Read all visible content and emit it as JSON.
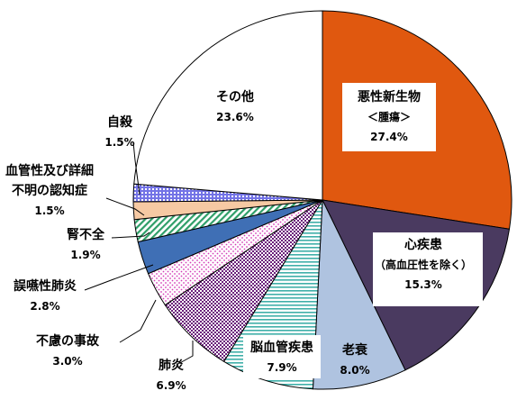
{
  "chart_data": {
    "type": "pie",
    "title": "",
    "start": "12 o'clock",
    "direction": "clockwise",
    "slices": [
      {
        "label": "悪性新生物",
        "sublabel": "＜腫瘍＞",
        "value": 27.4,
        "value_text": "27.4%",
        "fill": "#E0580F",
        "pattern": "solid",
        "label_box": true
      },
      {
        "label": "心疾患",
        "sublabel": "（高血圧性を除く）",
        "value": 15.3,
        "value_text": "15.3%",
        "fill": "#4A3A60",
        "pattern": "solid",
        "label_box": true
      },
      {
        "label": "老衰",
        "sublabel": "",
        "value": 8.0,
        "value_text": "8.0%",
        "fill": "#AFC3E0",
        "pattern": "solid",
        "label_box": false
      },
      {
        "label": "脳血管疾患",
        "sublabel": "",
        "value": 7.9,
        "value_text": "7.9%",
        "fill": "#3FAFA9",
        "pattern": "hlines-teal",
        "label_box": true
      },
      {
        "label": "肺炎",
        "sublabel": "",
        "value": 6.9,
        "value_text": "6.9%",
        "fill": "#6A1F7A",
        "pattern": "checker-purple",
        "label_box": false
      },
      {
        "label": "不慮の事故",
        "sublabel": "",
        "value": 3.0,
        "value_text": "3.0%",
        "fill": "#D33DB8",
        "pattern": "dots-magenta",
        "label_box": false
      },
      {
        "label": "誤嚥性肺炎",
        "sublabel": "",
        "value": 2.8,
        "value_text": "2.8%",
        "fill": "#3F6FB5",
        "pattern": "solid",
        "label_box": false
      },
      {
        "label": "腎不全",
        "sublabel": "",
        "value": 1.9,
        "value_text": "1.9%",
        "fill": "#2E9E68",
        "pattern": "diag-green",
        "label_box": false
      },
      {
        "label": "血管性及び詳細\n不明の認知症",
        "sublabel": "",
        "value": 1.5,
        "value_text": "1.5%",
        "fill": "#F6C9A3",
        "pattern": "solid",
        "label_box": false
      },
      {
        "label": "自殺",
        "sublabel": "",
        "value": 1.5,
        "value_text": "1.5%",
        "fill": "#7373E6",
        "pattern": "grid-blue",
        "label_box": false
      },
      {
        "label": "その他",
        "sublabel": "",
        "value": 23.6,
        "value_text": "23.6%",
        "fill": "#FFFFFF",
        "pattern": "solid",
        "label_box": false
      }
    ]
  }
}
